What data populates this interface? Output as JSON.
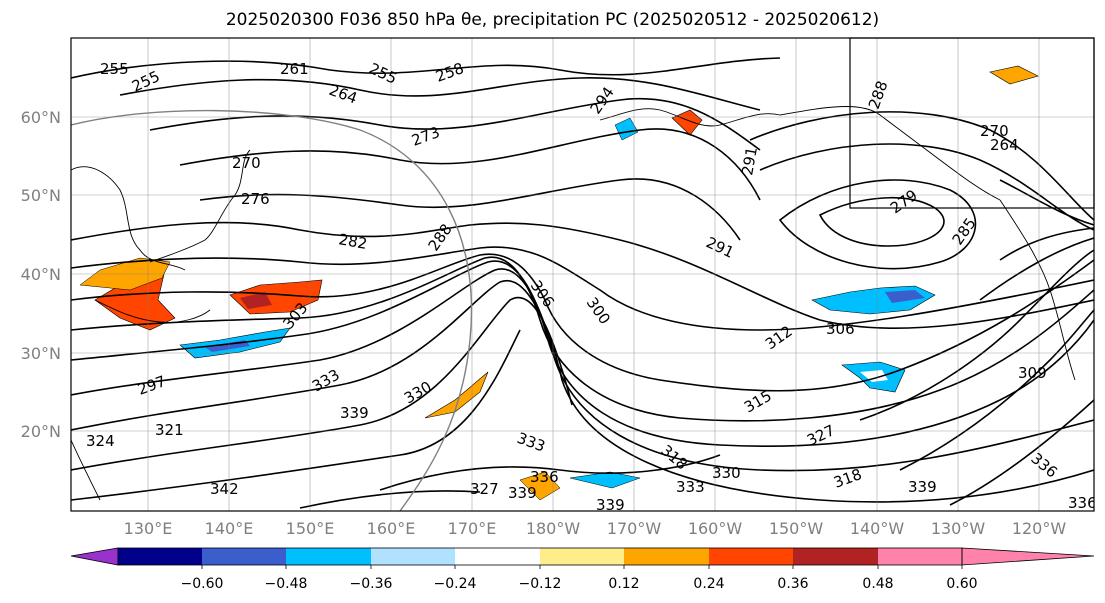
{
  "title": {
    "line": "2025020300 F036 850 hPa θe, precipitation PC (2025020512 - 2025020612)"
  },
  "latitude_labels": [
    "60°N",
    "50°N",
    "40°N",
    "30°N",
    "20°N"
  ],
  "longitude_labels": [
    "130°E",
    "140°E",
    "150°E",
    "160°E",
    "170°E",
    "180°W",
    "170°W",
    "160°W",
    "150°W",
    "140°W",
    "130°W",
    "120°W"
  ],
  "colorbar": {
    "colors": [
      "#9932cc",
      "#00008b",
      "#3a5fcd",
      "#00bfff",
      "#b0e2ff",
      "#ffffff",
      "#ffec8b",
      "#ffa500",
      "#ff4500",
      "#b22222",
      "#ff82ab"
    ],
    "ticks": [
      "−0.60",
      "−0.48",
      "−0.36",
      "−0.24",
      "−0.12",
      "0.12",
      "0.24",
      "0.36",
      "0.48",
      "0.60"
    ]
  },
  "contour_labels": [
    "255",
    "255",
    "261",
    "264",
    "255",
    "258",
    "273",
    "270",
    "276",
    "282",
    "288",
    "294",
    "300",
    "306",
    "297",
    "303",
    "291",
    "285",
    "279",
    "288",
    "270",
    "264",
    "291",
    "306",
    "312",
    "315",
    "321",
    "324",
    "330",
    "333",
    "339",
    "339",
    "333",
    "336",
    "327",
    "339",
    "318",
    "318",
    "327",
    "333",
    "330",
    "339",
    "336",
    "336",
    "309",
    "342"
  ],
  "fill_colors": {
    "light_blue": "#b0e2ff",
    "blue": "#00bfff",
    "mid_blue": "#3a5fcd",
    "light_orange": "#ffec8b",
    "orange": "#ffa500",
    "red_orange": "#ff4500",
    "dark_red": "#b22222"
  }
}
